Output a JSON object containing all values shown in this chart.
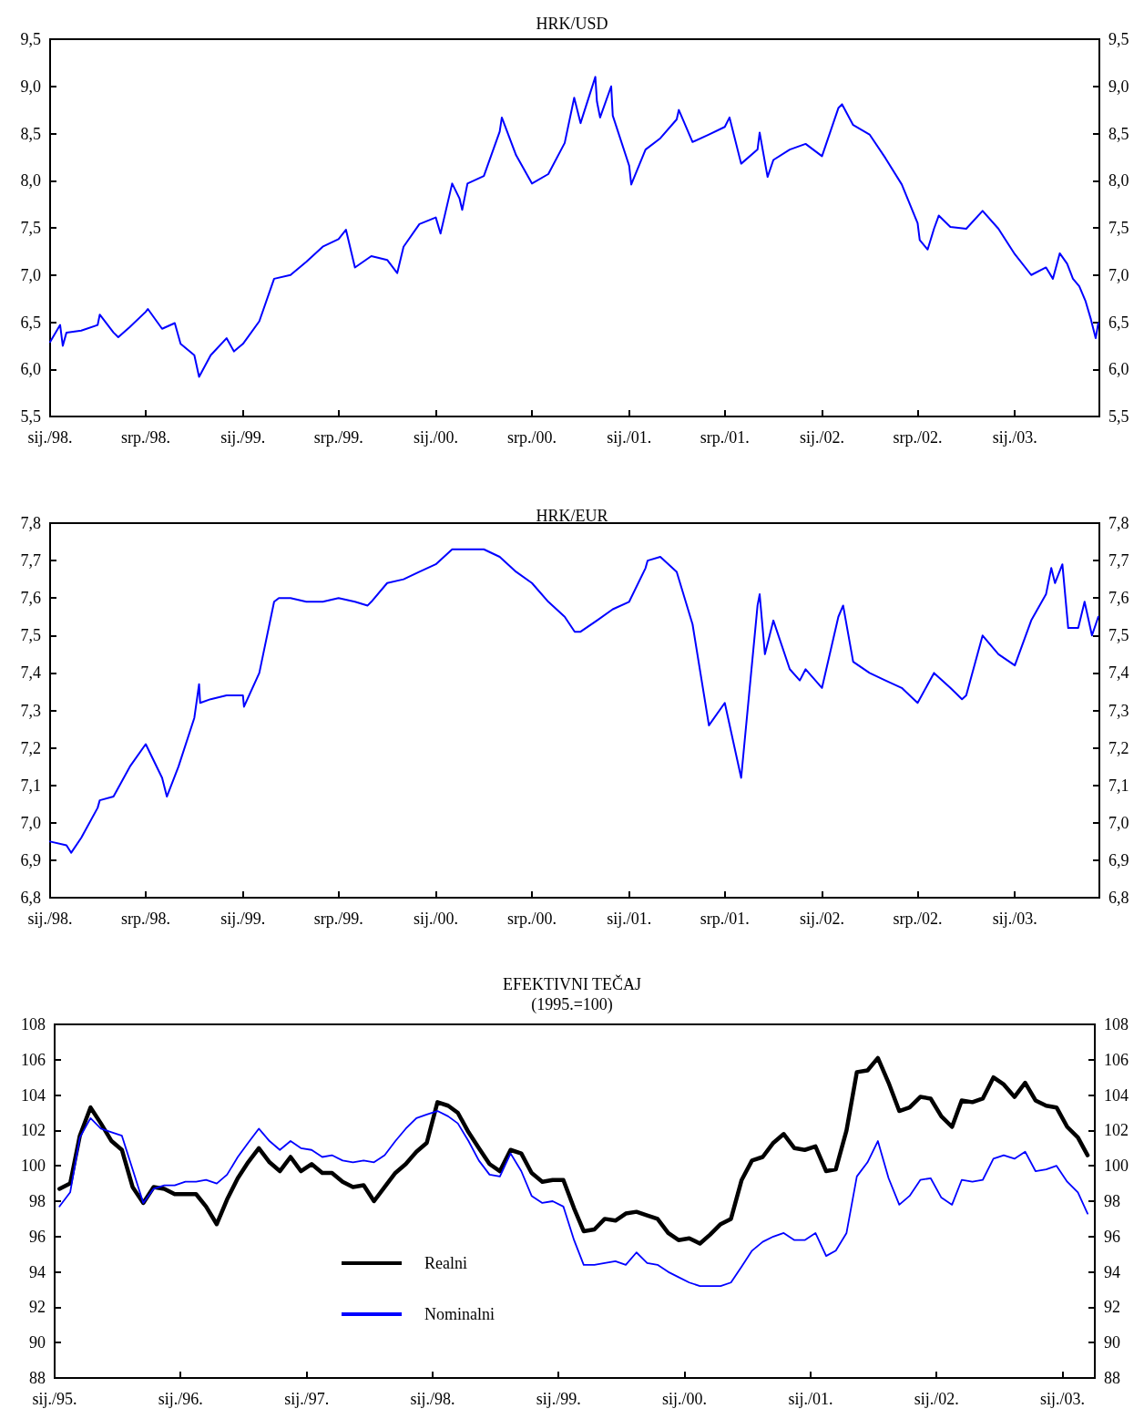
{
  "chart_data": [
    {
      "type": "line",
      "title": "HRK/USD",
      "x": [
        "1998-01-01",
        "1998-01-20",
        "1998-01-25",
        "1998-02-01",
        "1998-03-01",
        "1998-04-01",
        "1998-04-05",
        "1998-05-01",
        "1998-05-10",
        "1998-06-01",
        "1998-07-01",
        "1998-07-05",
        "1998-08-01",
        "1998-08-25",
        "1998-09-01",
        "1998-09-05",
        "1998-10-01",
        "1998-10-10",
        "1998-11-01",
        "1998-12-01",
        "1998-12-15",
        "1999-01-01",
        "1999-02-01",
        "1999-03-01",
        "1999-04-01",
        "1999-05-01",
        "1999-06-01",
        "1999-07-01",
        "1999-07-15",
        "1999-08-01",
        "1999-09-01",
        "1999-10-01",
        "1999-10-20",
        "1999-11-01",
        "1999-12-01",
        "2000-01-01",
        "2000-01-10",
        "2000-02-01",
        "2000-02-15",
        "2000-02-20",
        "2000-03-01",
        "2000-04-01",
        "2000-05-01",
        "2000-05-05",
        "2000-06-01",
        "2000-07-01",
        "2000-08-01",
        "2000-09-01",
        "2000-09-19",
        "2000-10-01",
        "2000-10-29",
        "2000-11-01",
        "2000-11-07",
        "2000-11-28",
        "2000-12-01",
        "2001-01-01",
        "2001-01-05",
        "2001-02-01",
        "2001-03-01",
        "2001-04-01",
        "2001-04-05",
        "2001-05-01",
        "2001-06-01",
        "2001-07-01",
        "2001-07-10",
        "2001-08-01",
        "2001-09-01",
        "2001-09-05",
        "2001-09-20",
        "2001-10-01",
        "2001-11-01",
        "2001-12-01",
        "2002-01-01",
        "2002-02-01",
        "2002-02-08",
        "2002-03-01",
        "2002-04-01",
        "2002-05-01",
        "2002-06-01",
        "2002-07-01",
        "2002-07-05",
        "2002-07-20",
        "2002-08-01",
        "2002-08-10",
        "2002-09-01",
        "2002-10-01",
        "2002-11-01",
        "2002-12-01",
        "2003-01-01",
        "2003-02-01",
        "2003-03-01",
        "2003-03-14",
        "2003-03-27",
        "2003-04-10",
        "2003-04-21",
        "2003-05-03",
        "2003-05-15",
        "2003-05-25",
        "2003-06-03",
        "2003-06-08"
      ],
      "series": [
        {
          "color": "#0000ff",
          "values": [
            6.29,
            6.47,
            6.25,
            6.39,
            6.41,
            6.47,
            6.58,
            6.39,
            6.34,
            6.45,
            6.61,
            6.64,
            6.43,
            6.49,
            6.35,
            6.27,
            6.15,
            5.92,
            6.15,
            6.33,
            6.19,
            6.27,
            6.51,
            6.96,
            7.0,
            7.14,
            7.3,
            7.38,
            7.48,
            7.08,
            7.2,
            7.16,
            7.02,
            7.3,
            7.54,
            7.61,
            7.44,
            7.97,
            7.81,
            7.69,
            7.97,
            8.05,
            8.52,
            8.67,
            8.27,
            7.97,
            8.07,
            8.4,
            8.88,
            8.61,
            9.1,
            8.84,
            8.67,
            9.0,
            8.69,
            8.16,
            7.96,
            8.33,
            8.45,
            8.65,
            8.75,
            8.41,
            8.49,
            8.57,
            8.67,
            8.18,
            8.33,
            8.51,
            8.04,
            8.22,
            8.33,
            8.39,
            8.26,
            8.77,
            8.81,
            8.59,
            8.49,
            8.24,
            7.96,
            7.55,
            7.37,
            7.27,
            7.49,
            7.63,
            7.51,
            7.49,
            7.68,
            7.49,
            7.22,
            7.0,
            7.08,
            6.96,
            7.23,
            7.12,
            6.96,
            6.88,
            6.72,
            6.53,
            6.33,
            6.49
          ]
        }
      ],
      "xlim": [
        "1998-01-01",
        "2003-06-10"
      ],
      "xticks": [
        {
          "value": "1998-01-01",
          "label": "sij./98."
        },
        {
          "value": "1998-07-01",
          "label": "srp./98."
        },
        {
          "value": "1999-01-01",
          "label": "sij./99."
        },
        {
          "value": "1999-07-01",
          "label": "srp./99."
        },
        {
          "value": "2000-01-01",
          "label": "sij./00."
        },
        {
          "value": "2000-07-01",
          "label": "srp./00."
        },
        {
          "value": "2001-01-01",
          "label": "sij./01."
        },
        {
          "value": "2001-07-01",
          "label": "srp./01."
        },
        {
          "value": "2002-01-01",
          "label": "sij./02."
        },
        {
          "value": "2002-07-01",
          "label": "srp./02."
        },
        {
          "value": "2003-01-01",
          "label": "sij./03."
        }
      ],
      "ylim": [
        5.5,
        9.5
      ],
      "yticks": [
        {
          "value": 5.5,
          "label": "5,5"
        },
        {
          "value": 6,
          "label": "6,0"
        },
        {
          "value": 6.5,
          "label": "6,5"
        },
        {
          "value": 7,
          "label": "7,0"
        },
        {
          "value": 7.5,
          "label": "7,5"
        },
        {
          "value": 8,
          "label": "8,0"
        },
        {
          "value": 8.5,
          "label": "8,5"
        },
        {
          "value": 9,
          "label": "9,0"
        },
        {
          "value": 9.5,
          "label": "9,5"
        }
      ],
      "y2lim": [
        5.5,
        9.5
      ],
      "y2ticks": [
        {
          "value": 5.5,
          "label": "5,5"
        },
        {
          "value": 6,
          "label": "6,0"
        },
        {
          "value": 6.5,
          "label": "6,5"
        },
        {
          "value": 7,
          "label": "7,0"
        },
        {
          "value": 7.5,
          "label": "7,5"
        },
        {
          "value": 8,
          "label": "8,0"
        },
        {
          "value": 8.5,
          "label": "8,5"
        },
        {
          "value": 9,
          "label": "9,0"
        },
        {
          "value": 9.5,
          "label": "9,5"
        }
      ]
    },
    {
      "type": "line",
      "title": "HRK/EUR",
      "x": [
        "1998-01-01",
        "1998-02-01",
        "1998-02-10",
        "1998-03-01",
        "1998-04-01",
        "1998-04-05",
        "1998-05-01",
        "1998-06-01",
        "1998-07-01",
        "1998-08-01",
        "1998-08-10",
        "1998-09-01",
        "1998-10-01",
        "1998-10-10",
        "1998-10-12",
        "1998-11-01",
        "1998-12-01",
        "1999-01-01",
        "1999-01-03",
        "1999-02-01",
        "1999-03-01",
        "1999-03-10",
        "1999-04-01",
        "1999-05-01",
        "1999-06-01",
        "1999-07-01",
        "1999-08-01",
        "1999-08-25",
        "1999-09-01",
        "1999-10-01",
        "1999-11-01",
        "1999-12-01",
        "2000-01-01",
        "2000-02-01",
        "2000-03-01",
        "2000-04-01",
        "2000-05-01",
        "2000-06-01",
        "2000-07-01",
        "2000-08-01",
        "2000-09-01",
        "2000-09-20",
        "2000-10-01",
        "2000-11-01",
        "2000-12-01",
        "2001-01-01",
        "2001-02-01",
        "2001-02-05",
        "2001-03-01",
        "2001-04-01",
        "2001-05-01",
        "2001-06-01",
        "2001-07-01",
        "2001-08-01",
        "2001-09-01",
        "2001-09-05",
        "2001-09-15",
        "2001-10-01",
        "2001-11-01",
        "2001-11-20",
        "2001-12-01",
        "2002-01-01",
        "2002-02-01",
        "2002-02-10",
        "2002-03-01",
        "2002-04-01",
        "2002-05-01",
        "2002-06-01",
        "2002-07-01",
        "2002-08-01",
        "2002-09-01",
        "2002-09-23",
        "2002-10-01",
        "2002-11-01",
        "2002-12-01",
        "2003-01-01",
        "2003-02-01",
        "2003-03-01",
        "2003-03-11",
        "2003-03-18",
        "2003-04-01",
        "2003-04-12",
        "2003-05-01",
        "2003-05-13",
        "2003-05-27",
        "2003-06-08"
      ],
      "series": [
        {
          "color": "#0000ff",
          "values": [
            6.95,
            6.94,
            6.92,
            6.96,
            7.04,
            7.06,
            7.07,
            7.15,
            7.21,
            7.12,
            7.07,
            7.15,
            7.28,
            7.37,
            7.32,
            7.33,
            7.34,
            7.34,
            7.31,
            7.4,
            7.59,
            7.6,
            7.6,
            7.59,
            7.59,
            7.6,
            7.59,
            7.58,
            7.59,
            7.64,
            7.65,
            7.67,
            7.69,
            7.73,
            7.73,
            7.73,
            7.71,
            7.67,
            7.64,
            7.59,
            7.55,
            7.51,
            7.51,
            7.54,
            7.57,
            7.59,
            7.68,
            7.7,
            7.71,
            7.67,
            7.53,
            7.26,
            7.32,
            7.12,
            7.58,
            7.61,
            7.45,
            7.54,
            7.41,
            7.38,
            7.41,
            7.36,
            7.55,
            7.58,
            7.43,
            7.4,
            7.38,
            7.36,
            7.32,
            7.4,
            7.36,
            7.33,
            7.34,
            7.5,
            7.45,
            7.42,
            7.54,
            7.61,
            7.68,
            7.64,
            7.69,
            7.52,
            7.52,
            7.59,
            7.5,
            7.55
          ]
        }
      ],
      "xlim": [
        "1998-01-01",
        "2003-06-10"
      ],
      "xticks": [
        {
          "value": "1998-01-01",
          "label": "sij./98."
        },
        {
          "value": "1998-07-01",
          "label": "srp./98."
        },
        {
          "value": "1999-01-01",
          "label": "sij./99."
        },
        {
          "value": "1999-07-01",
          "label": "srp./99."
        },
        {
          "value": "2000-01-01",
          "label": "sij./00."
        },
        {
          "value": "2000-07-01",
          "label": "srp./00."
        },
        {
          "value": "2001-01-01",
          "label": "sij./01."
        },
        {
          "value": "2001-07-01",
          "label": "srp./01."
        },
        {
          "value": "2002-01-01",
          "label": "sij./02."
        },
        {
          "value": "2002-07-01",
          "label": "srp./02."
        },
        {
          "value": "2003-01-01",
          "label": "sij./03."
        }
      ],
      "ylim": [
        6.8,
        7.8
      ],
      "yticks": [
        {
          "value": 6.8,
          "label": "6,8"
        },
        {
          "value": 6.9,
          "label": "6,9"
        },
        {
          "value": 7,
          "label": "7,0"
        },
        {
          "value": 7.1,
          "label": "7,1"
        },
        {
          "value": 7.2,
          "label": "7,2"
        },
        {
          "value": 7.3,
          "label": "7,3"
        },
        {
          "value": 7.4,
          "label": "7,4"
        },
        {
          "value": 7.5,
          "label": "7,5"
        },
        {
          "value": 7.6,
          "label": "7,6"
        },
        {
          "value": 7.7,
          "label": "7,7"
        },
        {
          "value": 7.8,
          "label": "7,8"
        }
      ],
      "y2lim": [
        6.8,
        7.8
      ],
      "y2ticks": [
        {
          "value": 6.8,
          "label": "6,8"
        },
        {
          "value": 6.9,
          "label": "6,9"
        },
        {
          "value": 7,
          "label": "7,0"
        },
        {
          "value": 7.1,
          "label": "7,1"
        },
        {
          "value": 7.2,
          "label": "7,2"
        },
        {
          "value": 7.3,
          "label": "7,3"
        },
        {
          "value": 7.4,
          "label": "7,4"
        },
        {
          "value": 7.5,
          "label": "7,5"
        },
        {
          "value": 7.6,
          "label": "7,6"
        },
        {
          "value": 7.7,
          "label": "7,7"
        },
        {
          "value": 7.8,
          "label": "7,8"
        }
      ]
    },
    {
      "type": "line",
      "title": "EFEKTIVNI TEČAJ",
      "subtitle": "(1995.=100)",
      "x": [
        "1995-01-15",
        "1995-02-15",
        "1995-03-15",
        "1995-04-15",
        "1995-05-15",
        "1995-06-15",
        "1995-07-15",
        "1995-08-15",
        "1995-09-15",
        "1995-10-15",
        "1995-11-15",
        "1995-12-15",
        "1996-01-15",
        "1996-02-15",
        "1996-03-15",
        "1996-04-15",
        "1996-05-15",
        "1996-06-15",
        "1996-07-15",
        "1996-08-15",
        "1996-09-15",
        "1996-10-15",
        "1996-11-15",
        "1996-12-15",
        "1997-01-15",
        "1997-02-15",
        "1997-03-15",
        "1997-04-15",
        "1997-05-15",
        "1997-06-15",
        "1997-07-15",
        "1997-08-15",
        "1997-09-15",
        "1997-10-15",
        "1997-11-15",
        "1997-12-15",
        "1998-01-15",
        "1998-02-15",
        "1998-03-15",
        "1998-04-15",
        "1998-05-15",
        "1998-06-15",
        "1998-07-15",
        "1998-08-15",
        "1998-09-15",
        "1998-10-15",
        "1998-11-15",
        "1998-12-15",
        "1999-01-15",
        "1999-02-15",
        "1999-03-15",
        "1999-04-15",
        "1999-05-15",
        "1999-06-15",
        "1999-07-15",
        "1999-08-15",
        "1999-09-15",
        "1999-10-15",
        "1999-11-15",
        "1999-12-15",
        "2000-01-15",
        "2000-02-15",
        "2000-03-15",
        "2000-04-15",
        "2000-05-15",
        "2000-06-15",
        "2000-07-15",
        "2000-08-15",
        "2000-09-15",
        "2000-10-15",
        "2000-11-15",
        "2000-12-15",
        "2001-01-15",
        "2001-02-15",
        "2001-03-15",
        "2001-04-15",
        "2001-05-15",
        "2001-06-15",
        "2001-07-15",
        "2001-08-15",
        "2001-09-15",
        "2001-10-15",
        "2001-11-15",
        "2001-12-15",
        "2002-01-15",
        "2002-02-15",
        "2002-03-15",
        "2002-04-15",
        "2002-05-15",
        "2002-06-15",
        "2002-07-15",
        "2002-08-15",
        "2002-09-15",
        "2002-10-15",
        "2002-11-15",
        "2002-12-15",
        "2003-01-15",
        "2003-02-15",
        "2003-03-15"
      ],
      "series": [
        {
          "name": "Realni",
          "color": "#000000",
          "values": [
            98.7,
            99.0,
            101.7,
            103.3,
            102.4,
            101.4,
            100.9,
            98.8,
            97.9,
            98.8,
            98.7,
            98.4,
            98.4,
            98.4,
            97.7,
            96.7,
            98.1,
            99.3,
            100.2,
            101.0,
            100.2,
            99.7,
            100.5,
            99.7,
            100.1,
            99.6,
            99.6,
            99.1,
            98.8,
            98.9,
            98.0,
            98.8,
            99.6,
            100.1,
            100.8,
            101.3,
            103.6,
            103.4,
            103.0,
            101.9,
            101.0,
            100.1,
            99.7,
            100.9,
            100.7,
            99.6,
            99.1,
            99.2,
            99.2,
            97.6,
            96.3,
            96.4,
            97.0,
            96.9,
            97.3,
            97.4,
            97.2,
            97.0,
            96.2,
            95.8,
            95.9,
            95.6,
            96.1,
            96.7,
            97.0,
            99.2,
            100.3,
            100.5,
            101.3,
            101.8,
            101.0,
            100.9,
            101.1,
            99.7,
            99.8,
            102.0,
            105.3,
            105.4,
            106.1,
            104.7,
            103.1,
            103.3,
            103.9,
            103.8,
            102.8,
            102.2,
            103.7,
            103.6,
            103.8,
            105.0,
            104.6,
            103.9,
            104.7,
            103.7,
            103.4,
            103.3,
            102.2,
            101.6,
            100.6
          ]
        },
        {
          "name": "Nominalni",
          "color": "#0000ff",
          "values": [
            97.7,
            98.5,
            101.6,
            102.7,
            102.1,
            101.9,
            101.7,
            99.8,
            97.9,
            98.7,
            98.9,
            98.9,
            99.1,
            99.1,
            99.2,
            99.0,
            99.5,
            100.5,
            101.3,
            102.1,
            101.4,
            100.9,
            101.4,
            101.0,
            100.9,
            100.5,
            100.6,
            100.3,
            100.2,
            100.3,
            100.2,
            100.6,
            101.4,
            102.1,
            102.7,
            102.9,
            103.1,
            102.8,
            102.4,
            101.4,
            100.3,
            99.5,
            99.4,
            100.7,
            99.7,
            98.3,
            97.9,
            98.0,
            97.7,
            95.8,
            94.4,
            94.4,
            94.5,
            94.6,
            94.4,
            95.1,
            94.5,
            94.4,
            94.0,
            93.7,
            93.4,
            93.2,
            93.2,
            93.2,
            93.4,
            94.3,
            95.2,
            95.7,
            96.0,
            96.2,
            95.8,
            95.8,
            96.2,
            94.9,
            95.2,
            96.2,
            99.4,
            100.2,
            101.4,
            99.3,
            97.8,
            98.3,
            99.2,
            99.3,
            98.2,
            97.8,
            99.2,
            99.1,
            99.2,
            100.4,
            100.6,
            100.4,
            100.8,
            99.7,
            99.8,
            100.0,
            99.1,
            98.5,
            97.3
          ]
        }
      ],
      "xlim": [
        "1995-01-01",
        "2003-04-05"
      ],
      "xticks": [
        {
          "value": "1995-01-01",
          "label": "sij./95."
        },
        {
          "value": "1996-01-01",
          "label": "sij./96."
        },
        {
          "value": "1997-01-01",
          "label": "sij./97."
        },
        {
          "value": "1998-01-01",
          "label": "sij./98."
        },
        {
          "value": "1999-01-01",
          "label": "sij./99."
        },
        {
          "value": "2000-01-01",
          "label": "sij./00."
        },
        {
          "value": "2001-01-01",
          "label": "sij./01."
        },
        {
          "value": "2002-01-01",
          "label": "sij./02."
        },
        {
          "value": "2003-01-01",
          "label": "sij./03."
        }
      ],
      "ylim": [
        88,
        108
      ],
      "yticks": [
        88,
        90,
        92,
        94,
        96,
        98,
        100,
        102,
        104,
        106,
        108
      ],
      "y2lim": [
        88,
        108
      ],
      "y2ticks": [
        88,
        90,
        92,
        94,
        96,
        98,
        100,
        102,
        104,
        106,
        108
      ],
      "legend": "bottom left"
    }
  ]
}
